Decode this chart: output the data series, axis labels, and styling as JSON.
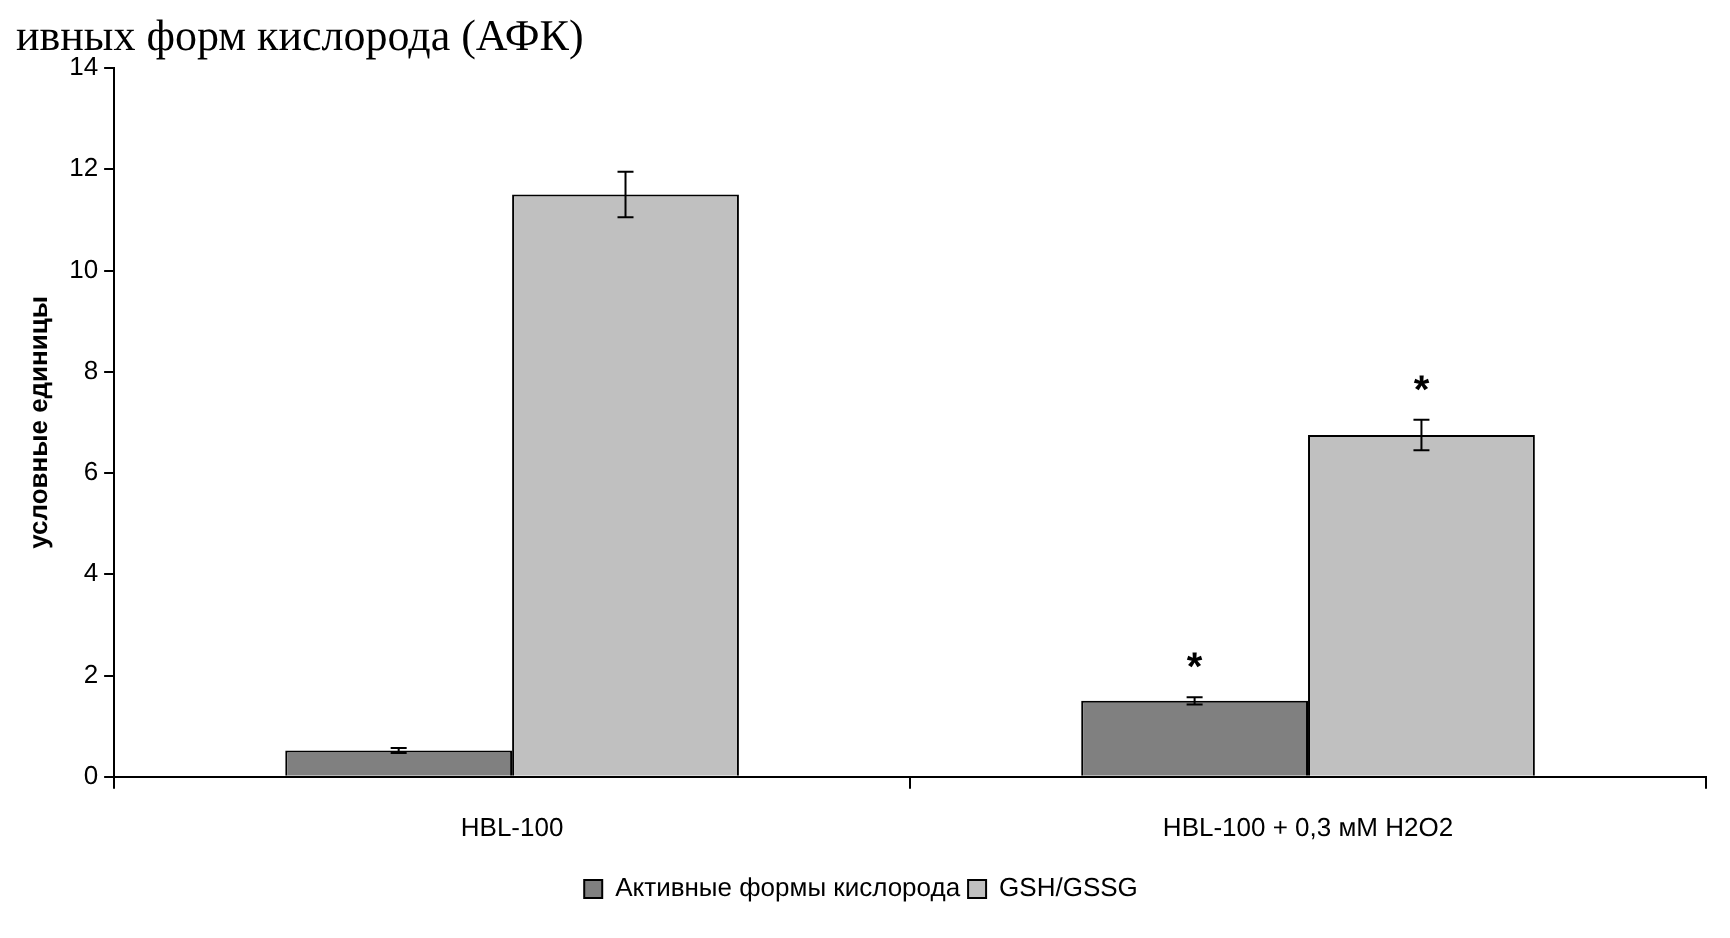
{
  "chart_data": {
    "type": "bar",
    "ylabel": "условные единицы",
    "categories": [
      "HBL-100",
      "HBL-100 + 0,3 мМ H2O2"
    ],
    "series": [
      {
        "name": "Активные формы кислорода",
        "color": "#808080",
        "values": [
          0.52,
          1.5
        ],
        "errors": [
          0.05,
          0.07
        ]
      },
      {
        "name": "GSH/GSSG",
        "color": "#c0c0c0",
        "values": [
          11.5,
          6.75
        ],
        "errors": [
          0.45,
          0.3
        ]
      }
    ],
    "ylim": [
      0,
      14
    ],
    "yticks": [
      0,
      2,
      4,
      6,
      8,
      10,
      12,
      14
    ],
    "grid": false,
    "legend": "bottom",
    "annotations": [
      "ивных форм кислорода (АФК)",
      {
        "text": "*",
        "x": "HBL-100 + 0,3 мМ H2O2",
        "y": 1.5
      },
      {
        "text": "*",
        "x": "HBL-100 + 0,3 мМ H2O2",
        "y": 6.75
      }
    ]
  }
}
